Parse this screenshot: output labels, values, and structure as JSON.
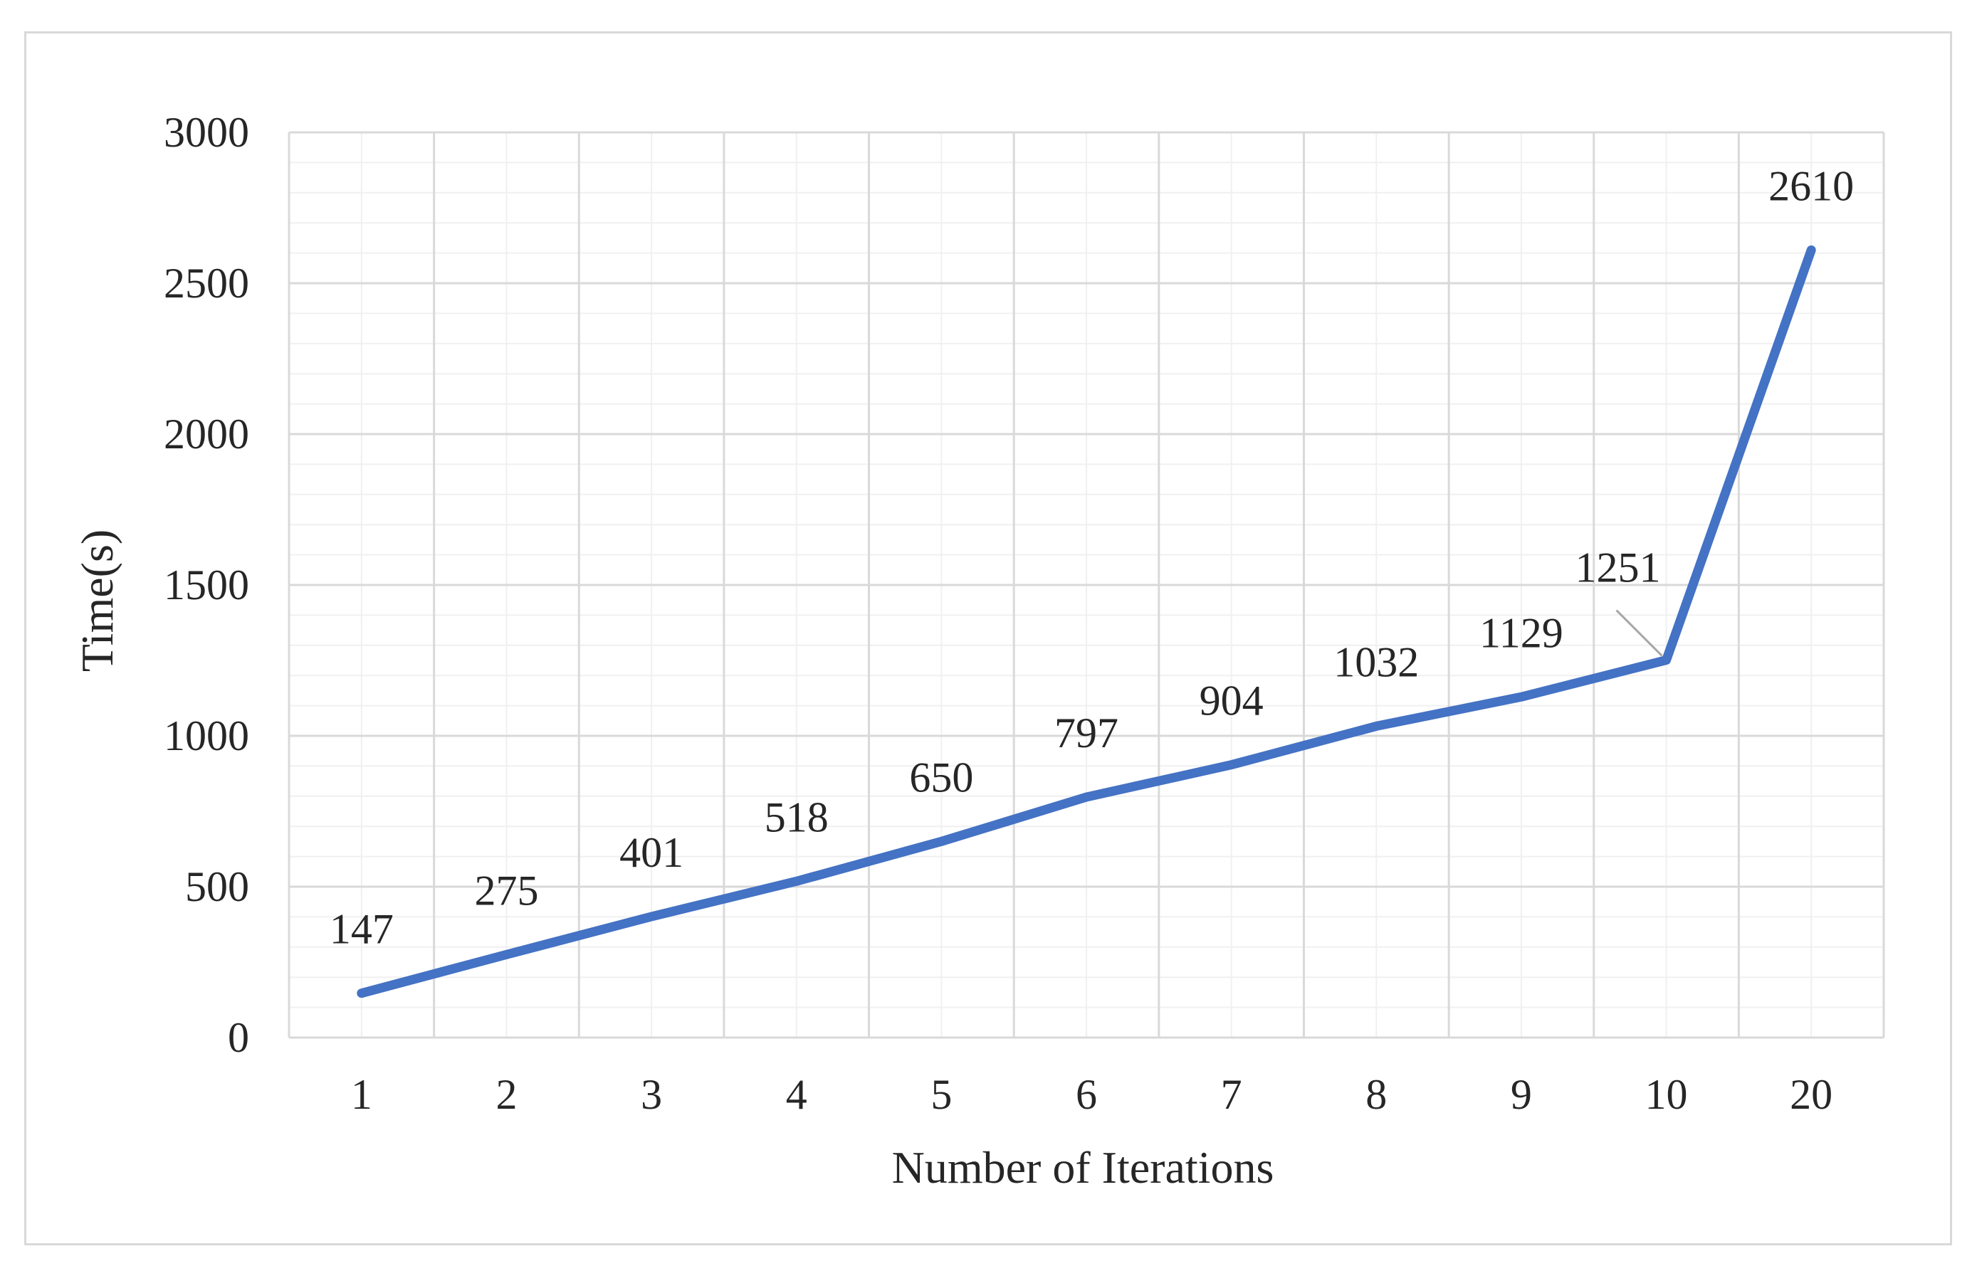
{
  "chart_data": {
    "type": "line",
    "title": "",
    "xlabel": "Number of Iterations",
    "ylabel": "Time(s)",
    "categories": [
      "1",
      "2",
      "3",
      "4",
      "5",
      "6",
      "7",
      "8",
      "9",
      "10",
      "20"
    ],
    "series": [
      {
        "values": [
          147,
          275,
          401,
          518,
          650,
          797,
          904,
          1032,
          1129,
          1251,
          2610
        ]
      }
    ],
    "data_labels": [
      "147",
      "275",
      "401",
      "518",
      "650",
      "797",
      "904",
      "1032",
      "1129",
      "1251",
      "2610"
    ],
    "yticks": [
      "0",
      "500",
      "1000",
      "1500",
      "2000",
      "2500",
      "3000"
    ],
    "ylim": [
      0,
      3000
    ],
    "grid": true,
    "legend": "none",
    "colors": {
      "line": "#4472c4",
      "major_grid": "#d9d9d9",
      "minor_grid": "#f0f0f0",
      "text": "#262626",
      "leader_line": "#a6a6a6"
    }
  }
}
